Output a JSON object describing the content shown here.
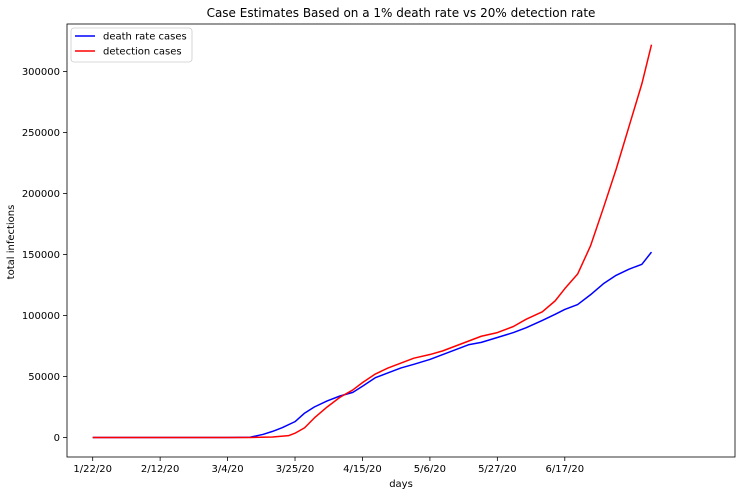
{
  "chart_data": {
    "type": "line",
    "title": "Case Estimates Based on a 1% death rate vs 20% detection rate",
    "xlabel": "days",
    "ylabel": "total infections",
    "x_start": "1/22/20",
    "x_tick_labels": [
      "1/22/20",
      "2/12/20",
      "3/4/20",
      "3/25/20",
      "4/15/20",
      "5/6/20",
      "5/27/20",
      "6/17/20"
    ],
    "y_ticks": [
      0,
      50000,
      100000,
      150000,
      200000,
      250000,
      300000
    ],
    "y_tick_labels": [
      "0",
      "50000",
      "100000",
      "150000",
      "200000",
      "250000",
      "300000"
    ],
    "xlim": [
      "1/14/20",
      "8/9/20"
    ],
    "ylim": [
      -16000,
      339000
    ],
    "grid": false,
    "legend_position": "top-left",
    "series": [
      {
        "name": "death rate cases",
        "color": "#0000ff",
        "x": [
          "1/22/20",
          "2/12/20",
          "3/4/20",
          "3/11/20",
          "3/15/20",
          "3/18/20",
          "3/21/20",
          "3/25/20",
          "3/28/20",
          "3/31/20",
          "4/4/20",
          "4/8/20",
          "4/12/20",
          "4/15/20",
          "4/19/20",
          "4/23/20",
          "4/27/20",
          "5/1/20",
          "5/6/20",
          "5/10/20",
          "5/14/20",
          "5/18/20",
          "5/22/20",
          "5/27/20",
          "6/1/20",
          "6/5/20",
          "6/10/20",
          "6/14/20",
          "6/17/20",
          "6/21/20",
          "6/25/20",
          "6/29/20",
          "7/3/20",
          "7/7/20",
          "7/11/20",
          "7/14/20"
        ],
        "y": [
          0,
          0,
          0,
          200,
          2500,
          5000,
          8000,
          13000,
          20000,
          25000,
          30000,
          34000,
          37000,
          42000,
          49000,
          53000,
          57000,
          60000,
          64000,
          68000,
          72000,
          76000,
          78000,
          82000,
          86000,
          90000,
          96000,
          101000,
          105000,
          109000,
          117000,
          126000,
          133000,
          138000,
          142000,
          152000
        ]
      },
      {
        "name": "detection cases",
        "color": "#ff0000",
        "x": [
          "1/22/20",
          "2/12/20",
          "3/4/20",
          "3/11/20",
          "3/18/20",
          "3/23/20",
          "3/25/20",
          "3/28/20",
          "3/31/20",
          "4/4/20",
          "4/8/20",
          "4/12/20",
          "4/15/20",
          "4/19/20",
          "4/23/20",
          "4/27/20",
          "5/1/20",
          "5/6/20",
          "5/10/20",
          "5/14/20",
          "5/18/20",
          "5/22/20",
          "5/27/20",
          "6/1/20",
          "6/5/20",
          "6/10/20",
          "6/14/20",
          "6/17/20",
          "6/21/20",
          "6/25/20",
          "6/29/20",
          "7/3/20",
          "7/7/20",
          "7/11/20",
          "7/14/20"
        ],
        "y": [
          0,
          0,
          0,
          0,
          400,
          1500,
          3500,
          8000,
          16000,
          25000,
          33000,
          39000,
          45000,
          52000,
          57000,
          61000,
          65000,
          68000,
          71000,
          75000,
          79000,
          83000,
          86000,
          91000,
          97000,
          103000,
          112000,
          122000,
          134000,
          157000,
          188000,
          220000,
          255000,
          290000,
          322000
        ]
      }
    ]
  }
}
